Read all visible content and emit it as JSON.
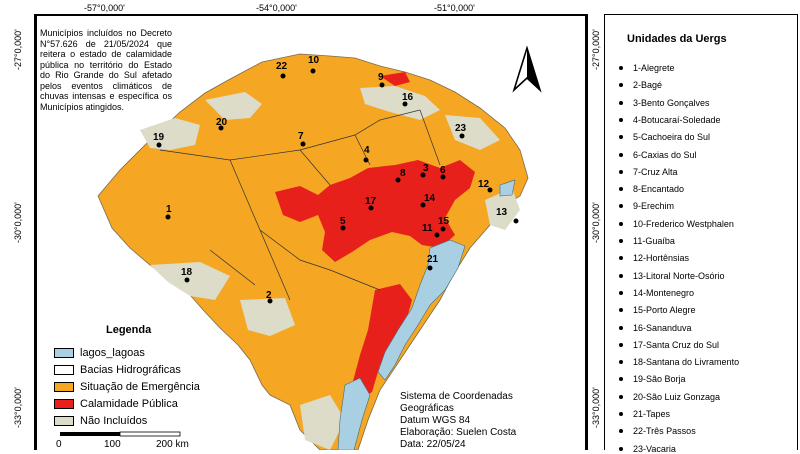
{
  "top_ticks": [
    "-57°0,000'",
    "-54°0,000'",
    "-51°0,000'"
  ],
  "left_ticks": [
    "-27°0,000'",
    "-30°0,000'",
    "-33°0,000'"
  ],
  "right_ticks": [
    "-27°0,000'",
    "-30°0,000'",
    "-33°0,000'"
  ],
  "caption": "Municípios incluídos no Decreto N°57.626 de 21/05/2024 que reitera o estado de calamidade pública no território do Estado do Rio Grande do Sul afetado pelos eventos climáticos de chuvas intensas e específica os Municípios atingidos.",
  "legend": {
    "title": "Legenda",
    "items": [
      {
        "label": "lagos_lagoas",
        "color": "#a9cfe3"
      },
      {
        "label": "Bacias Hidrográficas",
        "color": "#ffffff"
      },
      {
        "label": "Situação de Emergência",
        "color": "#f5a623"
      },
      {
        "label": "Calamidade Pública",
        "color": "#e8201c"
      },
      {
        "label": "Não Incluídos",
        "color": "#dcdcc8"
      }
    ]
  },
  "scale": {
    "ticks": [
      "0",
      "100",
      "200 km"
    ]
  },
  "system_info": [
    "Sistema de Coordenadas",
    "Geográficas",
    "Datum WGS 84",
    "Elaboração: Suelen Costa",
    "Data: 22/05/24"
  ],
  "units_panel": {
    "title": "Unidades da Uergs",
    "items": [
      "1-Alegrete",
      "2-Bagé",
      "3-Bento Gonçalves",
      "4-Botucaraí-Soledade",
      "5-Cachoeira do Sul",
      "6-Caxias do Sul",
      "7-Cruz Alta",
      "8-Encantado",
      "9-Erechim",
      "10-Frederico Westphalen",
      "11-Guaíba",
      "12-Hortênsias",
      "13-Litoral Norte-Osório",
      "14-Montenegro",
      "15-Porto Alegre",
      "16-Sananduva",
      "17-Santa Cruz do Sul",
      "18-Santana do Livramento",
      "19-São Borja",
      "20-São Luiz Gonzaga",
      "21-Tapes",
      "22-Três Passos",
      "23-Vacaria"
    ]
  },
  "map_points": [
    "1",
    "2",
    "3",
    "4",
    "5",
    "6",
    "7",
    "8",
    "9",
    "10",
    "11",
    "12",
    "13",
    "14",
    "15",
    "16",
    "17",
    "18",
    "19",
    "20",
    "21",
    "22",
    "23"
  ],
  "colors": {
    "emergency": "#f5a623",
    "calamity": "#e8201c",
    "excluded": "#dcdcc8",
    "lake": "#a9cfe3"
  }
}
